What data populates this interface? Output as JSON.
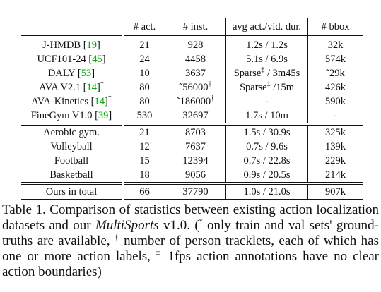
{
  "table": {
    "columns": [
      "# act.",
      "# inst.",
      "avg act./vid. dur.",
      "# bbox"
    ],
    "groups": [
      [
        [
          [
            {
              "text": "J-HMDB ["
            },
            {
              "text": "19",
              "style": "cite"
            },
            {
              "text": "]"
            }
          ],
          21,
          928,
          "1.2s / 1.2s",
          "32k"
        ],
        [
          [
            {
              "text": "UCF101-24 ["
            },
            {
              "text": "45",
              "style": "cite"
            },
            {
              "text": "]"
            }
          ],
          24,
          4458,
          "5.1s / 6.9s",
          "574k"
        ],
        [
          [
            {
              "text": "DALY ["
            },
            {
              "text": "53",
              "style": "cite"
            },
            {
              "text": "]"
            }
          ],
          10,
          3637,
          [
            {
              "text": "Sparse"
            },
            {
              "text": "‡",
              "style": "sup"
            },
            {
              "text": " / 3m45s"
            }
          ],
          "˜29k"
        ],
        [
          [
            {
              "text": "AVA V2.1 ["
            },
            {
              "text": "14",
              "style": "cite"
            },
            {
              "text": "]"
            },
            {
              "text": "*",
              "style": "sup"
            }
          ],
          80,
          [
            {
              "text": "˜56000"
            },
            {
              "text": "†",
              "style": "sup"
            }
          ],
          [
            {
              "text": "Sparse"
            },
            {
              "text": "‡",
              "style": "sup"
            },
            {
              "text": " /15m"
            }
          ],
          "426k"
        ],
        [
          [
            {
              "text": "AVA-Kinetics ["
            },
            {
              "text": "14",
              "style": "cite"
            },
            {
              "text": "]"
            },
            {
              "text": "*",
              "style": "sup"
            }
          ],
          80,
          [
            {
              "text": "˜186000"
            },
            {
              "text": "†",
              "style": "sup"
            }
          ],
          "-",
          "590k"
        ],
        [
          [
            {
              "text": "FineGym V1.0 ["
            },
            {
              "text": "39",
              "style": "cite"
            },
            {
              "text": "]"
            }
          ],
          530,
          32697,
          "1.7s / 10m",
          "-"
        ]
      ],
      [
        [
          "Aerobic gym.",
          21,
          8703,
          "1.5s / 30.9s",
          "325k"
        ],
        [
          "Volleyball",
          12,
          7637,
          "0.7s / 9.6s",
          "139k"
        ],
        [
          "Football",
          15,
          12394,
          "0.7s / 22.8s",
          "229k"
        ],
        [
          "Basketball",
          18,
          9056,
          "0.9s / 20.5s",
          "214k"
        ]
      ],
      [
        [
          "Ours in total",
          66,
          37790,
          "1.0s / 21.0s",
          "907k"
        ]
      ]
    ]
  },
  "caption": [
    {
      "text": "Table 1. Comparison of statistics between existing action localization datasets and our "
    },
    {
      "text": "MultiSports",
      "style": "italic"
    },
    {
      "text": " v1.0. ("
    },
    {
      "text": "*",
      "style": "sup"
    },
    {
      "text": " only train and val sets' ground-truths are available, "
    },
    {
      "text": "†",
      "style": "sup"
    },
    {
      "text": " number of person tracklets, each of which has one or more action labels, "
    },
    {
      "text": "‡",
      "style": "sup"
    },
    {
      "text": " 1fps action annotations have no clear action boundaries)"
    }
  ]
}
